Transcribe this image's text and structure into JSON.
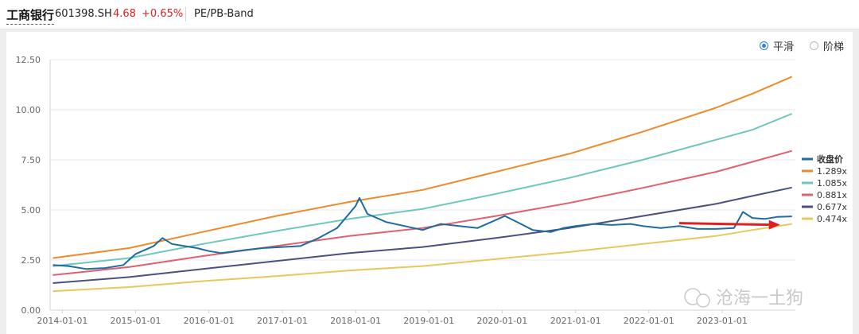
{
  "header": {
    "stock_name": "工商银行",
    "stock_code": "601398.SH",
    "price": "4.68",
    "change": "+0.65%",
    "view_title": "PE/PB-Band"
  },
  "modes": [
    {
      "label": "平滑",
      "selected": true
    },
    {
      "label": "阶梯",
      "selected": false
    }
  ],
  "watermark": "沧海一土狗",
  "colors": {
    "price_color": "#e02020",
    "close_series": "#1f6ca0",
    "grid": "#e6e9ef"
  },
  "chart_data": {
    "type": "line",
    "y_ticks": [
      "0.00",
      "2.50",
      "5.00",
      "7.50",
      "10.00",
      "12.50"
    ],
    "ylim": [
      0,
      12.5
    ],
    "x_ticks": [
      "2014-01-01",
      "2015-01-01",
      "2016-01-01",
      "2017-01-01",
      "2018-01-01",
      "2019-01-01",
      "2020-01-01",
      "2021-01-01",
      "2022-01-01",
      "2023-01-01"
    ],
    "xlim": [
      "2013-11-01",
      "2024-01-01"
    ],
    "legend_position": "right",
    "annotation": "red arrow pointing right at about 4.3 in 2023",
    "series": [
      {
        "name": "收盘价",
        "color": "#1f6ca0",
        "width": 2,
        "points": [
          [
            "2013-11-15",
            2.25
          ],
          [
            "2014-02-01",
            2.2
          ],
          [
            "2014-05-01",
            2.05
          ],
          [
            "2014-08-01",
            2.1
          ],
          [
            "2014-11-01",
            2.25
          ],
          [
            "2015-01-01",
            2.8
          ],
          [
            "2015-04-01",
            3.2
          ],
          [
            "2015-05-15",
            3.6
          ],
          [
            "2015-07-01",
            3.3
          ],
          [
            "2015-09-01",
            3.2
          ],
          [
            "2015-11-01",
            3.1
          ],
          [
            "2016-01-01",
            2.95
          ],
          [
            "2016-03-01",
            2.85
          ],
          [
            "2016-07-01",
            3.0
          ],
          [
            "2016-10-01",
            3.1
          ],
          [
            "2017-01-01",
            3.15
          ],
          [
            "2017-04-01",
            3.2
          ],
          [
            "2017-07-01",
            3.6
          ],
          [
            "2017-10-01",
            4.1
          ],
          [
            "2018-01-01",
            5.2
          ],
          [
            "2018-01-20",
            5.6
          ],
          [
            "2018-03-01",
            4.8
          ],
          [
            "2018-06-01",
            4.4
          ],
          [
            "2018-09-01",
            4.2
          ],
          [
            "2018-12-01",
            4.0
          ],
          [
            "2019-03-01",
            4.3
          ],
          [
            "2019-06-01",
            4.2
          ],
          [
            "2019-09-01",
            4.1
          ],
          [
            "2019-12-01",
            4.5
          ],
          [
            "2020-01-15",
            4.7
          ],
          [
            "2020-03-15",
            4.4
          ],
          [
            "2020-06-01",
            4.0
          ],
          [
            "2020-09-01",
            3.9
          ],
          [
            "2020-11-01",
            4.1
          ],
          [
            "2021-01-01",
            4.2
          ],
          [
            "2021-04-01",
            4.3
          ],
          [
            "2021-07-01",
            4.25
          ],
          [
            "2021-10-01",
            4.3
          ],
          [
            "2021-12-01",
            4.2
          ],
          [
            "2022-03-01",
            4.1
          ],
          [
            "2022-06-01",
            4.2
          ],
          [
            "2022-09-01",
            4.05
          ],
          [
            "2022-12-01",
            4.05
          ],
          [
            "2023-03-01",
            4.1
          ],
          [
            "2023-04-15",
            4.9
          ],
          [
            "2023-06-01",
            4.6
          ],
          [
            "2023-08-01",
            4.55
          ],
          [
            "2023-10-01",
            4.65
          ],
          [
            "2023-12-15",
            4.68
          ]
        ]
      },
      {
        "name": "1.289x",
        "color": "#ee8a2a",
        "width": 2,
        "points": [
          [
            "2013-11-15",
            2.6
          ],
          [
            "2014-12-01",
            3.1
          ],
          [
            "2015-12-01",
            3.9
          ],
          [
            "2016-12-01",
            4.7
          ],
          [
            "2017-12-01",
            5.4
          ],
          [
            "2018-12-01",
            6.0
          ],
          [
            "2019-12-01",
            6.9
          ],
          [
            "2020-12-01",
            7.8
          ],
          [
            "2021-12-01",
            8.9
          ],
          [
            "2022-12-01",
            10.1
          ],
          [
            "2023-06-01",
            10.8
          ],
          [
            "2023-12-15",
            11.65
          ]
        ]
      },
      {
        "name": "1.085x",
        "color": "#6cc7bd",
        "width": 2,
        "points": [
          [
            "2013-11-15",
            2.2
          ],
          [
            "2014-12-01",
            2.6
          ],
          [
            "2015-12-01",
            3.3
          ],
          [
            "2016-12-01",
            3.95
          ],
          [
            "2017-12-01",
            4.55
          ],
          [
            "2018-12-01",
            5.05
          ],
          [
            "2019-12-01",
            5.8
          ],
          [
            "2020-12-01",
            6.6
          ],
          [
            "2021-12-01",
            7.5
          ],
          [
            "2022-12-01",
            8.5
          ],
          [
            "2023-06-01",
            9.0
          ],
          [
            "2023-12-15",
            9.8
          ]
        ]
      },
      {
        "name": "0.881x",
        "color": "#e06070",
        "width": 2,
        "points": [
          [
            "2013-11-15",
            1.75
          ],
          [
            "2014-12-01",
            2.15
          ],
          [
            "2015-12-01",
            2.7
          ],
          [
            "2016-12-01",
            3.2
          ],
          [
            "2017-12-01",
            3.7
          ],
          [
            "2018-12-01",
            4.1
          ],
          [
            "2019-12-01",
            4.7
          ],
          [
            "2020-12-01",
            5.35
          ],
          [
            "2021-12-01",
            6.1
          ],
          [
            "2022-12-01",
            6.9
          ],
          [
            "2023-06-01",
            7.4
          ],
          [
            "2023-12-15",
            7.95
          ]
        ]
      },
      {
        "name": "0.677x",
        "color": "#4a5080",
        "width": 2,
        "points": [
          [
            "2013-11-15",
            1.35
          ],
          [
            "2014-12-01",
            1.65
          ],
          [
            "2015-12-01",
            2.05
          ],
          [
            "2016-12-01",
            2.45
          ],
          [
            "2017-12-01",
            2.85
          ],
          [
            "2018-12-01",
            3.15
          ],
          [
            "2019-12-01",
            3.6
          ],
          [
            "2020-12-01",
            4.1
          ],
          [
            "2021-12-01",
            4.7
          ],
          [
            "2022-12-01",
            5.3
          ],
          [
            "2023-06-01",
            5.7
          ],
          [
            "2023-12-15",
            6.12
          ]
        ]
      },
      {
        "name": "0.474x",
        "color": "#e8c85a",
        "width": 2,
        "points": [
          [
            "2013-11-15",
            0.95
          ],
          [
            "2014-12-01",
            1.15
          ],
          [
            "2015-12-01",
            1.45
          ],
          [
            "2016-12-01",
            1.7
          ],
          [
            "2017-12-01",
            1.98
          ],
          [
            "2018-12-01",
            2.2
          ],
          [
            "2019-12-01",
            2.55
          ],
          [
            "2020-12-01",
            2.9
          ],
          [
            "2021-12-01",
            3.3
          ],
          [
            "2022-12-01",
            3.7
          ],
          [
            "2023-06-01",
            4.0
          ],
          [
            "2023-12-15",
            4.3
          ]
        ]
      }
    ]
  }
}
